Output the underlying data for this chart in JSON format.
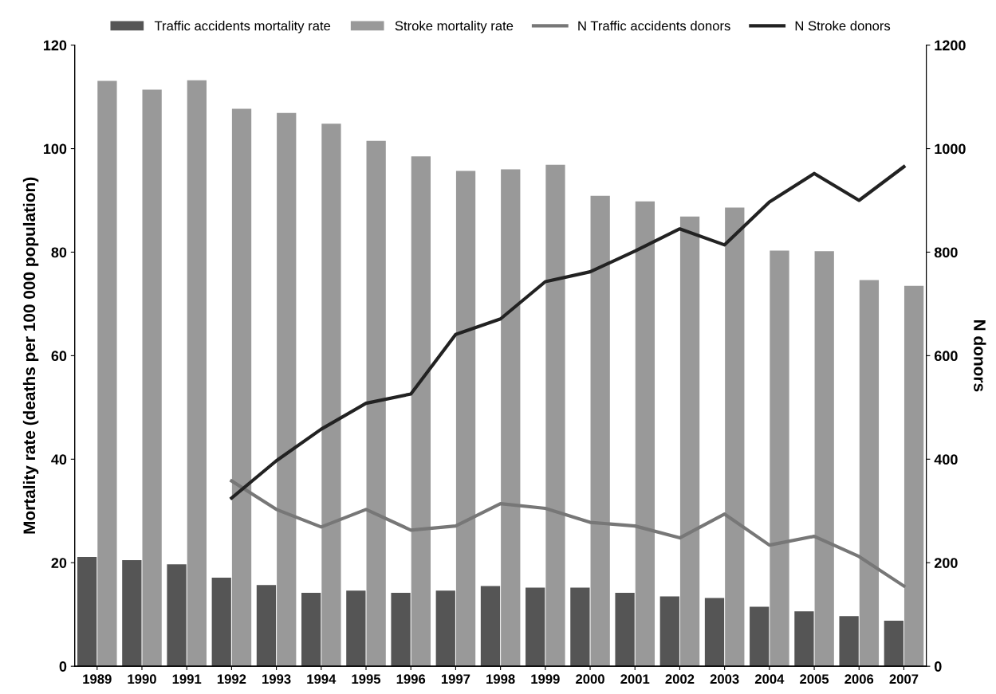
{
  "chart_data": {
    "type": "bar",
    "categories": [
      "1989",
      "1990",
      "1991",
      "1992",
      "1993",
      "1994",
      "1995",
      "1996",
      "1997",
      "1998",
      "1999",
      "2000",
      "2001",
      "2002",
      "2003",
      "2004",
      "2005",
      "2006",
      "2007"
    ],
    "ylabel": "Mortality rate (deaths per 100 000 population)",
    "y2label": "N donors",
    "ylim": [
      0,
      120
    ],
    "yticks": [
      0,
      20,
      40,
      60,
      80,
      100,
      120
    ],
    "y2lim": [
      0,
      1200
    ],
    "y2ticks": [
      0,
      200,
      400,
      600,
      800,
      1000,
      1200
    ],
    "grid": false,
    "legend": "top",
    "series": [
      {
        "name": "Traffic accidents mortality rate",
        "color": "#555555",
        "values": [
          21.1,
          20.5,
          19.7,
          17.1,
          15.7,
          14.2,
          14.6,
          14.2,
          14.6,
          15.5,
          15.2,
          15.2,
          14.2,
          13.5,
          13.2,
          11.5,
          10.6,
          9.7,
          8.8
        ]
      },
      {
        "name": "Stroke mortality rate",
        "color": "#999999",
        "values": [
          113.1,
          111.4,
          113.2,
          107.7,
          106.9,
          104.8,
          101.5,
          98.5,
          95.7,
          96.0,
          96.9,
          90.9,
          89.8,
          86.9,
          88.6,
          80.3,
          80.2,
          74.6,
          73.5
        ]
      },
      {
        "name": "N Traffic accidents donors",
        "type": "line",
        "axis": "y2",
        "color": "#777777",
        "values": [
          null,
          null,
          null,
          358,
          303,
          269,
          303,
          263,
          271,
          314,
          305,
          278,
          271,
          248,
          294,
          234,
          251,
          212,
          155
        ]
      },
      {
        "name": "N Stroke donors",
        "type": "line",
        "axis": "y2",
        "color": "#222222",
        "values": [
          null,
          null,
          null,
          325,
          397,
          458,
          508,
          526,
          641,
          671,
          743,
          762,
          802,
          845,
          814,
          897,
          952,
          900,
          965
        ]
      }
    ]
  }
}
